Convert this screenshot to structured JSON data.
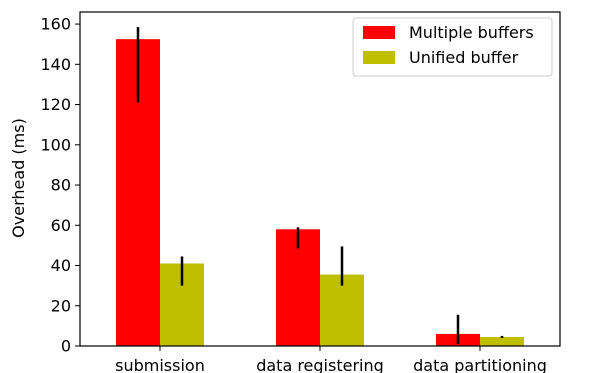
{
  "chart_data": {
    "type": "bar",
    "categories": [
      "submission",
      "data registering",
      "data partitioning"
    ],
    "series": [
      {
        "name": "Multiple buffers",
        "color": "#ff0000",
        "values": [
          152.5,
          58,
          6
        ],
        "err_low": [
          121,
          48.5,
          1
        ],
        "err_high": [
          158.5,
          59,
          15.5
        ]
      },
      {
        "name": "Unified buffer",
        "color": "#bfbf00",
        "values": [
          41,
          35.5,
          4.5
        ],
        "err_low": [
          30,
          30,
          4
        ],
        "err_high": [
          44.5,
          49.5,
          5
        ]
      }
    ],
    "xlabel": "",
    "ylabel": "Overhead (ms)",
    "ylim": [
      0,
      166
    ],
    "yticks": [
      0,
      20,
      40,
      60,
      80,
      100,
      120,
      140,
      160
    ],
    "grid": false,
    "legend_position": "top-right"
  }
}
